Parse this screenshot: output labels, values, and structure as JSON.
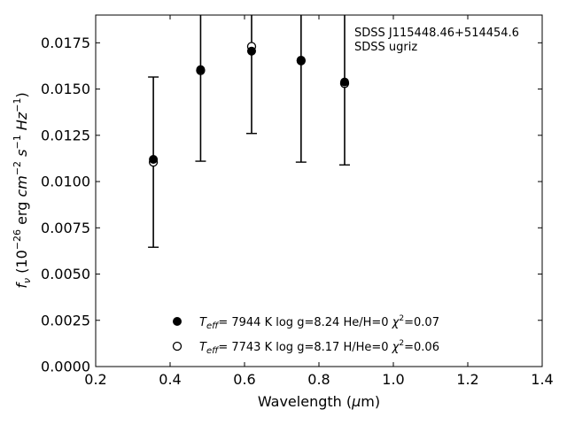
{
  "chart_data": {
    "type": "scatter",
    "title": "",
    "xlabel": "Wavelength (μm)",
    "ylabel": "f_ν (10^-26 erg cm^-2 s^-1 Hz^-1)",
    "xlim": [
      0.2,
      1.4
    ],
    "ylim": [
      0.0,
      0.019
    ],
    "x_ticks": [
      0.2,
      0.4,
      0.6,
      0.8,
      1.0,
      1.2,
      1.4
    ],
    "x_tick_labels": [
      "0.2",
      "0.4",
      "0.6",
      "0.8",
      "1.0",
      "1.2",
      "1.4"
    ],
    "y_ticks": [
      0.0,
      0.0025,
      0.005,
      0.0075,
      0.01,
      0.0125,
      0.015,
      0.0175
    ],
    "y_tick_labels": [
      "0.0000",
      "0.0025",
      "0.0050",
      "0.0075",
      "0.0100",
      "0.0125",
      "0.0150",
      "0.0175"
    ],
    "grid": false,
    "legend_position": "lower-center",
    "annotation": {
      "line1": "SDSS J115448.46+514454.6",
      "line2": "SDSS ugriz"
    },
    "observed": {
      "x": [
        0.355,
        0.482,
        0.619,
        0.752,
        0.869
      ],
      "y": [
        0.01105,
        0.016,
        0.0173,
        0.01655,
        0.0153
      ],
      "err": [
        0.0046,
        0.0049,
        0.0047,
        0.0055,
        0.0044
      ]
    },
    "series": [
      {
        "name": "T_eff= 7944 K log g=8.24 He/H=0 χ²=0.07",
        "marker": "filled-circle",
        "teff": "7944",
        "logg": "8.24",
        "comp": "He/H=0",
        "chi2": "0.07",
        "x": [
          0.355,
          0.482,
          0.619,
          0.752,
          0.869
        ],
        "y": [
          0.0112,
          0.01605,
          0.01705,
          0.01652,
          0.01538
        ]
      },
      {
        "name": "T_eff= 7743 K log g=8.17 H/He=0 χ²=0.06",
        "marker": "open-circle",
        "teff": "7743",
        "logg": "8.17",
        "comp": "H/He=0",
        "chi2": "0.06",
        "x": [
          0.355,
          0.482,
          0.619,
          0.752,
          0.869
        ],
        "y": [
          0.01105,
          0.016,
          0.0173,
          0.01655,
          0.0153
        ]
      }
    ]
  }
}
